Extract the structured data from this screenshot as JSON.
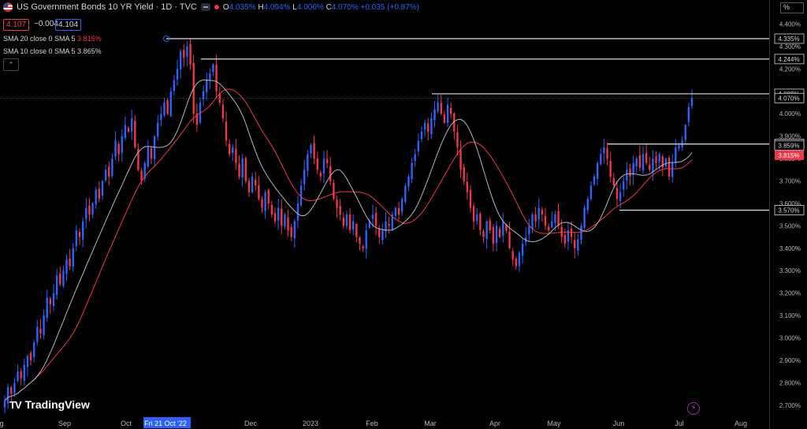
{
  "header": {
    "title": "US Government Bonds 10 YR Yield · 1D · TVC",
    "ohlc": {
      "o_label": "O",
      "o": "4.035%",
      "h_label": "H",
      "h": "4.094%",
      "l_label": "L",
      "l": "4.006%",
      "c_label": "C",
      "c": "4.070%",
      "change": "+0.035 (+0.87%)"
    },
    "bid": "4.107",
    "spread": "−0.004",
    "ask": "4.104",
    "sma20_label": "SMA 20 close 0 SMA 5",
    "sma20_value": "3.815%",
    "sma10_label": "SMA 10 close 0 SMA 5",
    "sma10_value": "3.865%"
  },
  "axis_unit": "%",
  "brand": "TradingView",
  "colors": {
    "up": "#2962ff",
    "down": "#f23645",
    "sma20": "#f23645",
    "sma10": "#b2b5be",
    "crosshair_label": "#2962ff"
  },
  "chart_data": {
    "type": "candlestick",
    "y_ticks": [
      "4.400%",
      "4.300%",
      "4.200%",
      "4.100%",
      "4.000%",
      "3.900%",
      "3.800%",
      "3.700%",
      "3.600%",
      "3.500%",
      "3.400%",
      "3.300%",
      "3.200%",
      "3.100%",
      "3.000%",
      "2.900%",
      "2.800%",
      "2.700%"
    ],
    "ylim": [
      2.65,
      4.43
    ],
    "x_ticks": [
      "g",
      "Sep",
      "Oct",
      "Fri 21 Oct '22",
      "Dec",
      "2023",
      "Feb",
      "Mar",
      "Apr",
      "May",
      "Jun",
      "Jul",
      "Aug"
    ],
    "price_labels": [
      {
        "text": "4.335%",
        "value": 4.335,
        "boxed": true
      },
      {
        "text": "4.244%",
        "value": 4.244,
        "boxed": true
      },
      {
        "text": "4.089%",
        "value": 4.089,
        "boxed": true
      },
      {
        "text": "4.070%",
        "value": 4.07,
        "boxed": true
      },
      {
        "text": "3.865%",
        "value": 3.865,
        "boxed": true
      },
      {
        "text": "3.859%",
        "value": 3.859,
        "boxed": true
      },
      {
        "text": "3.815%",
        "value": 3.815,
        "boxed": false
      },
      {
        "text": "3.570%",
        "value": 3.57,
        "boxed": true
      }
    ],
    "horizontal_levels": [
      {
        "value": 4.335,
        "from": "2022-10-21"
      },
      {
        "value": 4.244,
        "from": "2022-11-07"
      },
      {
        "value": 4.089,
        "from": "2023-03-02"
      },
      {
        "value": 3.865,
        "from": "2023-05-26"
      },
      {
        "value": 3.57,
        "from": "2023-06-01"
      }
    ],
    "close_series": [
      2.72,
      2.78,
      2.75,
      2.8,
      2.85,
      2.82,
      2.88,
      2.92,
      2.9,
      2.98,
      3.05,
      3.02,
      3.1,
      3.18,
      3.15,
      3.2,
      3.28,
      3.24,
      3.3,
      3.35,
      3.32,
      3.4,
      3.48,
      3.45,
      3.52,
      3.58,
      3.55,
      3.6,
      3.66,
      3.62,
      3.7,
      3.75,
      3.72,
      3.8,
      3.88,
      3.82,
      3.9,
      3.95,
      3.92,
      3.98,
      3.85,
      3.75,
      3.7,
      3.78,
      3.85,
      3.8,
      3.9,
      3.96,
      4.0,
      4.05,
      4.0,
      4.1,
      4.15,
      4.2,
      4.28,
      4.25,
      4.3,
      4.22,
      4.0,
      3.95,
      4.05,
      4.1,
      4.15,
      4.18,
      4.22,
      4.1,
      4.05,
      3.98,
      3.88,
      3.82,
      3.85,
      3.78,
      3.72,
      3.8,
      3.7,
      3.65,
      3.72,
      3.68,
      3.62,
      3.58,
      3.65,
      3.6,
      3.55,
      3.52,
      3.58,
      3.5,
      3.55,
      3.48,
      3.45,
      3.52,
      3.6,
      3.68,
      3.75,
      3.82,
      3.86,
      3.8,
      3.75,
      3.72,
      3.8,
      3.78,
      3.7,
      3.62,
      3.58,
      3.55,
      3.5,
      3.55,
      3.48,
      3.52,
      3.45,
      3.42,
      3.4,
      3.48,
      3.52,
      3.55,
      3.5,
      3.45,
      3.48,
      3.52,
      3.5,
      3.55,
      3.58,
      3.55,
      3.62,
      3.68,
      3.72,
      3.78,
      3.82,
      3.88,
      3.92,
      3.96,
      3.92,
      3.98,
      4.02,
      4.05,
      4.0,
      3.96,
      4.04,
      4.0,
      3.92,
      3.85,
      3.75,
      3.7,
      3.65,
      3.58,
      3.52,
      3.55,
      3.48,
      3.45,
      3.52,
      3.48,
      3.42,
      3.5,
      3.45,
      3.52,
      3.48,
      3.4,
      3.35,
      3.32,
      3.38,
      3.42,
      3.45,
      3.5,
      3.55,
      3.52,
      3.58,
      3.55,
      3.5,
      3.48,
      3.52,
      3.55,
      3.5,
      3.45,
      3.42,
      3.48,
      3.45,
      3.4,
      3.44,
      3.5,
      3.58,
      3.62,
      3.68,
      3.72,
      3.78,
      3.82,
      3.85,
      3.8,
      3.72,
      3.68,
      3.62,
      3.65,
      3.7,
      3.75,
      3.72,
      3.78,
      3.8,
      3.76,
      3.82,
      3.78,
      3.75,
      3.8,
      3.78,
      3.82,
      3.76,
      3.8,
      3.72,
      3.78,
      3.85,
      3.86,
      3.88,
      3.95,
      4.03,
      4.07
    ]
  }
}
